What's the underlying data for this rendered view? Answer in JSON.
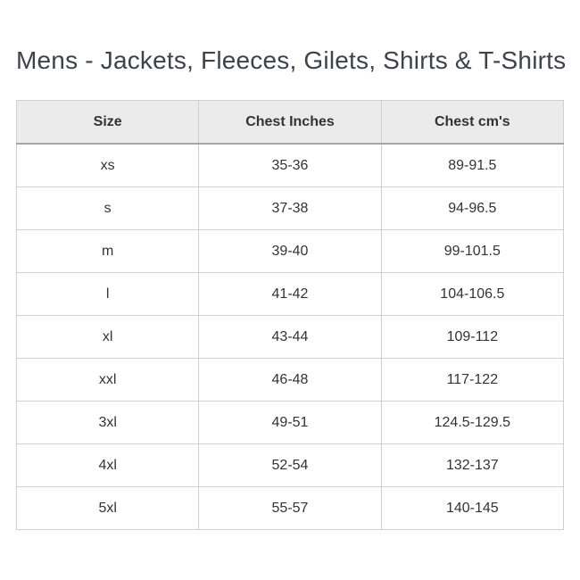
{
  "page": {
    "title": "Mens - Jackets, Fleeces, Gilets, Shirts & T-Shirts"
  },
  "table": {
    "headers": [
      "Size",
      "Chest Inches",
      "Chest cm's"
    ],
    "rows": [
      {
        "size": "xs",
        "chest_inches": "35-36",
        "chest_cm": "89-91.5"
      },
      {
        "size": "s",
        "chest_inches": "37-38",
        "chest_cm": "94-96.5"
      },
      {
        "size": "m",
        "chest_inches": "39-40",
        "chest_cm": "99-101.5"
      },
      {
        "size": "l",
        "chest_inches": "41-42",
        "chest_cm": "104-106.5"
      },
      {
        "size": "xl",
        "chest_inches": "43-44",
        "chest_cm": "109-112"
      },
      {
        "size": "xxl",
        "chest_inches": "46-48",
        "chest_cm": "117-122"
      },
      {
        "size": "3xl",
        "chest_inches": "49-51",
        "chest_cm": "124.5-129.5"
      },
      {
        "size": "4xl",
        "chest_inches": "52-54",
        "chest_cm": "132-137"
      },
      {
        "size": "5xl",
        "chest_inches": "55-57",
        "chest_cm": "140-145"
      }
    ]
  },
  "colors": {
    "background": "#ffffff",
    "header_bg": "#ebebeb",
    "grid_border": "#cfcfcf",
    "header_rule": "#a6a6a6",
    "cell_text": "#333333",
    "title_text": "#3d424c"
  }
}
